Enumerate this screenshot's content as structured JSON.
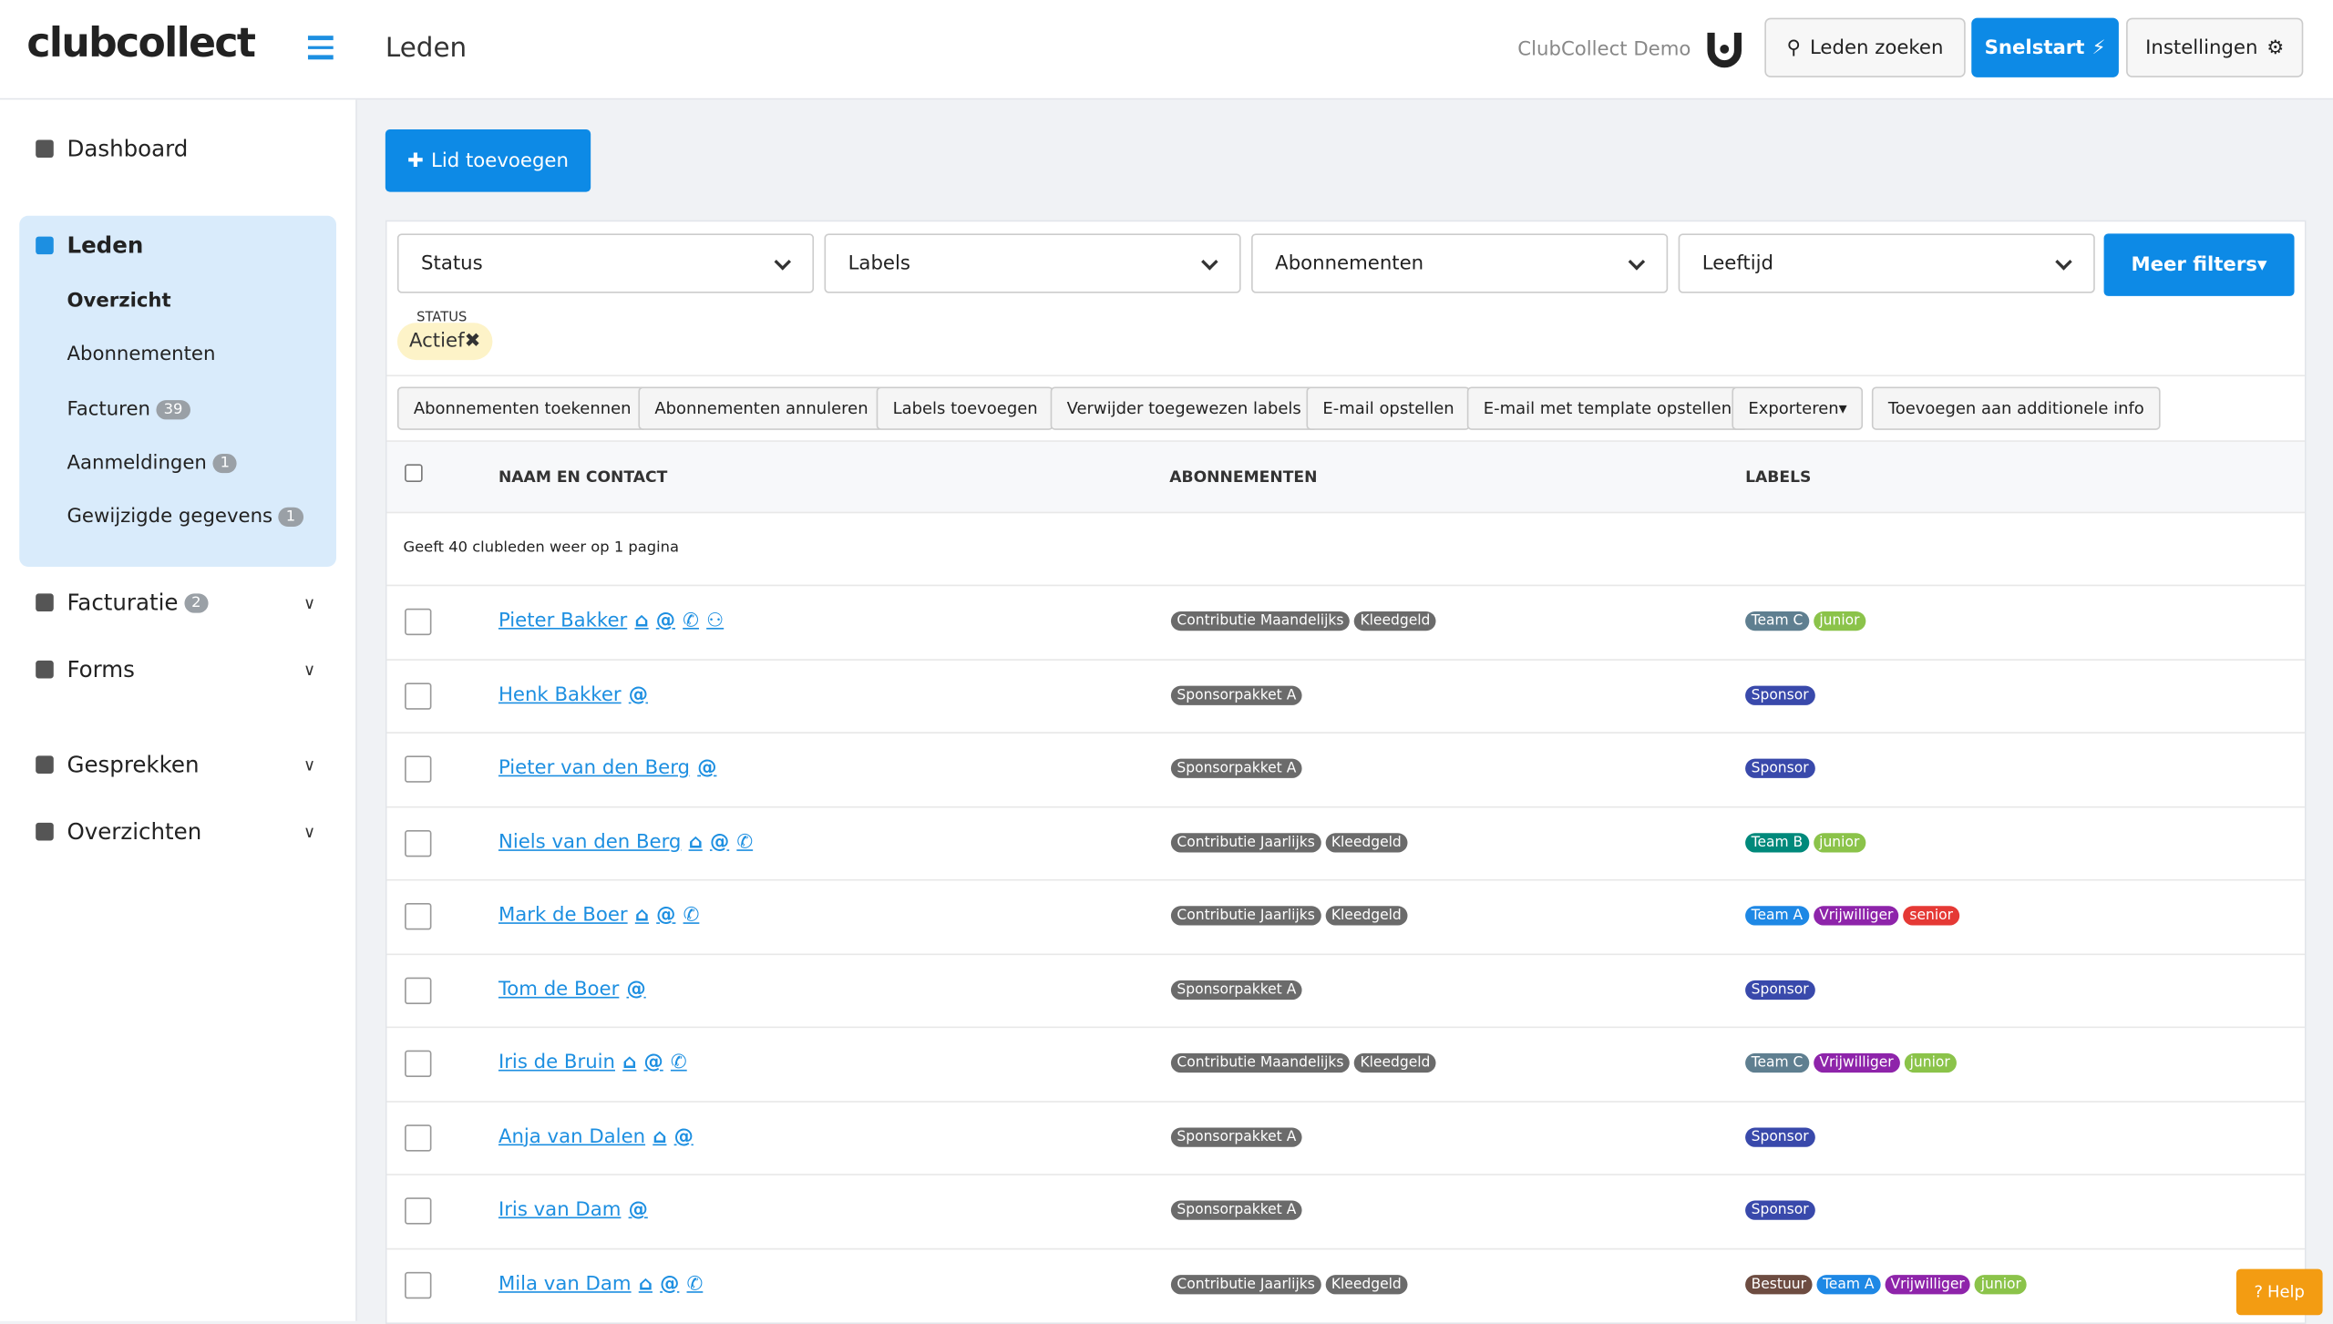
{
  "header": {
    "logo": "clubcollect",
    "page_title": "Leden",
    "organisation": "ClubCollect Demo",
    "buttons": [
      "Leden zoeken",
      "Snelstart",
      "Instellingen"
    ]
  },
  "sidebar": {
    "items": [
      {
        "label": "Dashboard"
      },
      {
        "label": "Leden",
        "active": true,
        "children": [
          {
            "label": "Overzicht"
          },
          {
            "label": "Abonnementen"
          },
          {
            "label": "Facturen",
            "badge": "39"
          },
          {
            "label": "Aanmeldingen",
            "badge": "1"
          },
          {
            "label": "Gewijzigde gegevens",
            "badge": "1"
          }
        ]
      },
      {
        "label": "Facturatie",
        "badge": "2"
      },
      {
        "label": "Forms"
      },
      {
        "label": "Gesprekken"
      },
      {
        "label": "Overzichten"
      }
    ]
  },
  "main": {
    "add_button": "Lid toevoegen",
    "filters": [
      "Status",
      "Labels",
      "Abonnementen",
      "Leeftijd"
    ],
    "more_filters": "Meer filters",
    "active_filter": {
      "label": "STATUS",
      "value": "Actief"
    },
    "actions": [
      "Abonnementen toekennen",
      "Abonnementen annuleren",
      "Labels toevoegen",
      "Verwijder toegewezen labels",
      "E-mail opstellen",
      "E-mail met template opstellen",
      "Exporteren",
      "Toevoegen aan additionele info"
    ],
    "table": {
      "headers": [
        "NAAM EN CONTACT",
        "ABONNEMENTEN",
        "LABELS"
      ],
      "summary": "Geeft 40 clubleden weer op 1 pagina",
      "rows": [
        {
          "name": "Pieter Bakker",
          "subscriptions": [
            "Contributie Maandelijks",
            "Kleedgeld"
          ],
          "labels": [
            "Team C",
            "junior"
          ]
        },
        {
          "name": "Henk Bakker",
          "subscriptions": [
            "Sponsorpakket A"
          ],
          "labels": [
            "Sponsor"
          ]
        },
        {
          "name": "Pieter van den Berg",
          "subscriptions": [
            "Sponsorpakket A"
          ],
          "labels": [
            "Sponsor"
          ]
        },
        {
          "name": "Niels van den Berg",
          "subscriptions": [
            "Contributie Jaarlijks",
            "Kleedgeld"
          ],
          "labels": [
            "Team B",
            "junior"
          ]
        },
        {
          "name": "Mark de Boer",
          "subscriptions": [
            "Contributie Jaarlijks",
            "Kleedgeld"
          ],
          "labels": [
            "Team A",
            "Vrijwilliger",
            "senior"
          ]
        },
        {
          "name": "Tom de Boer",
          "subscriptions": [
            "Sponsorpakket A"
          ],
          "labels": [
            "Sponsor"
          ]
        },
        {
          "name": "Iris de Bruin",
          "subscriptions": [
            "Contributie Maandelijks",
            "Kleedgeld"
          ],
          "labels": [
            "Team C",
            "Vrijwilliger",
            "junior"
          ]
        },
        {
          "name": "Anja van Dalen",
          "subscriptions": [
            "Sponsorpakket A"
          ],
          "labels": [
            "Sponsor"
          ]
        },
        {
          "name": "Iris van Dam",
          "subscriptions": [
            "Sponsorpakket A"
          ],
          "labels": [
            "Sponsor"
          ]
        },
        {
          "name": "Mila van Dam",
          "subscriptions": [
            "Contributie Jaarlijks",
            "Kleedgeld"
          ],
          "labels": [
            "Bestuur",
            "Team A",
            "Vrijwilliger",
            "junior"
          ]
        }
      ]
    }
  },
  "help": "Help"
}
